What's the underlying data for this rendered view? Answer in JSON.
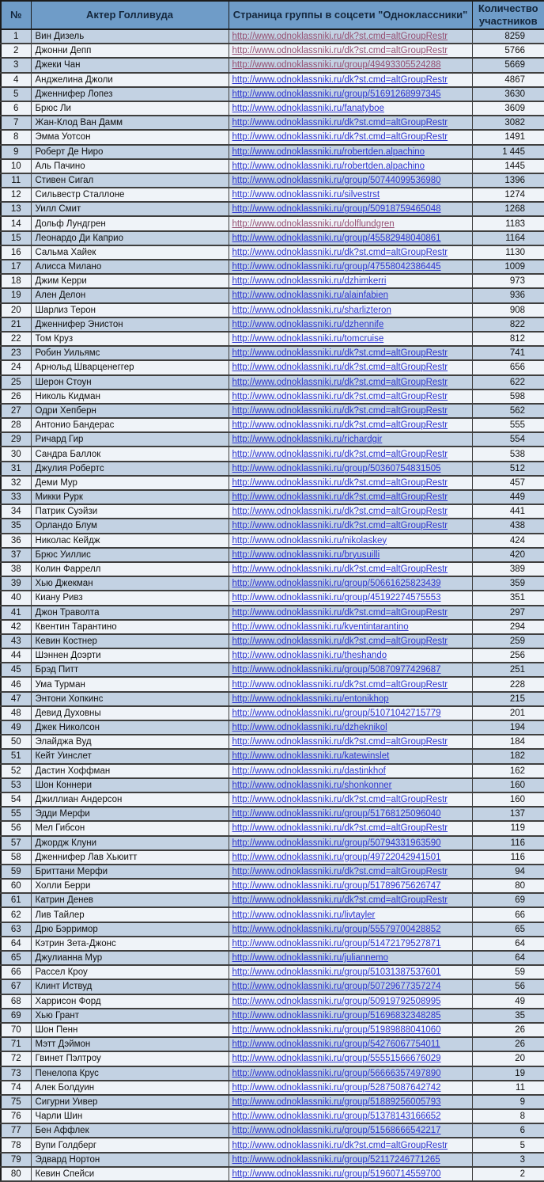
{
  "table": {
    "columns": [
      "№",
      "Актер Голливуда",
      "Страница группы в соцсети \"Одноклассники\"",
      "Количество участников"
    ],
    "colors": {
      "header_bg": "#6f9cc8",
      "header_text": "#14273d",
      "row_odd_bg": "#c3d2e3",
      "row_even_bg": "#eff3f8",
      "link_color": "#2d35cf",
      "visited_link_color": "#954f72",
      "grid_line": "#3f3f3f"
    },
    "rows": [
      {
        "n": 1,
        "actor": "Вин Дизель",
        "url": "http://www.odnoklassniki.ru/dk?st.cmd=altGroupRestr",
        "count": "8259",
        "visited": true
      },
      {
        "n": 2,
        "actor": "Джонни Депп",
        "url": "http://www.odnoklassniki.ru/dk?st.cmd=altGroupRestr",
        "count": "5766",
        "visited": true
      },
      {
        "n": 3,
        "actor": "Джеки Чан",
        "url": "http://www.odnoklassniki.ru/group/49493305524288",
        "count": "5669",
        "visited": true
      },
      {
        "n": 4,
        "actor": "Анджелина Джоли",
        "url": "http://www.odnoklassniki.ru/dk?st.cmd=altGroupRestr",
        "count": "4867",
        "visited": false
      },
      {
        "n": 5,
        "actor": "Дженнифер Лопез",
        "url": "http://www.odnoklassniki.ru/group/51691268997345",
        "count": "3630",
        "visited": false
      },
      {
        "n": 6,
        "actor": "Брюс Ли",
        "url": "http://www.odnoklassniki.ru/fanatyboe",
        "count": "3609",
        "visited": false
      },
      {
        "n": 7,
        "actor": "Жан-Клод Ван Дамм",
        "url": "http://www.odnoklassniki.ru/dk?st.cmd=altGroupRestr",
        "count": "3082",
        "visited": false
      },
      {
        "n": 8,
        "actor": "Эмма Уотсон",
        "url": "http://www.odnoklassniki.ru/dk?st.cmd=altGroupRestr",
        "count": "1491",
        "visited": false
      },
      {
        "n": 9,
        "actor": "Роберт Де Ниро",
        "url": "http://www.odnoklassniki.ru/robertden.alpachino",
        "count": "1 445",
        "visited": false
      },
      {
        "n": 10,
        "actor": "Аль Пачино",
        "url": "http://www.odnoklassniki.ru/robertden.alpachino",
        "count": "1445",
        "visited": false
      },
      {
        "n": 11,
        "actor": "Стивен Сигал",
        "url": "http://www.odnoklassniki.ru/group/50744099536980",
        "count": "1396",
        "visited": false
      },
      {
        "n": 12,
        "actor": "Сильвестр Сталлоне",
        "url": "http://www.odnoklassniki.ru/silvestrst",
        "count": "1274",
        "visited": false
      },
      {
        "n": 13,
        "actor": "Уилл Смит",
        "url": "http://www.odnoklassniki.ru/group/50918759465048",
        "count": "1268",
        "visited": false
      },
      {
        "n": 14,
        "actor": "Дольф Лундгрен",
        "url": "http://www.odnoklassniki.ru/dolflundgren",
        "count": "1183",
        "visited": true
      },
      {
        "n": 15,
        "actor": "Леонардо Ди Каприо",
        "url": "http://www.odnoklassniki.ru/group/45582948040861",
        "count": "1164",
        "visited": false
      },
      {
        "n": 16,
        "actor": "Сальма Хайек",
        "url": "http://www.odnoklassniki.ru/dk?st.cmd=altGroupRestr",
        "count": "1130",
        "visited": false
      },
      {
        "n": 17,
        "actor": "Алисса Милано",
        "url": "http://www.odnoklassniki.ru/group/47558042386445",
        "count": "1009",
        "visited": false
      },
      {
        "n": 18,
        "actor": "Джим Керри",
        "url": "http://www.odnoklassniki.ru/dzhimkerri",
        "count": "973",
        "visited": false
      },
      {
        "n": 19,
        "actor": "Ален Делон",
        "url": "http://www.odnoklassniki.ru/alainfabien",
        "count": "936",
        "visited": false
      },
      {
        "n": 20,
        "actor": "Шарлиз Терон",
        "url": "http://www.odnoklassniki.ru/sharlizteron",
        "count": "908",
        "visited": false
      },
      {
        "n": 21,
        "actor": "Дженнифер Энистон",
        "url": "http://www.odnoklassniki.ru/dzhennife",
        "count": "822",
        "visited": false
      },
      {
        "n": 22,
        "actor": "Том Круз",
        "url": "http://www.odnoklassniki.ru/tomcruise",
        "count": "812",
        "visited": false
      },
      {
        "n": 23,
        "actor": "Робин Уильямс",
        "url": "http://www.odnoklassniki.ru/dk?st.cmd=altGroupRestr",
        "count": "741",
        "visited": false
      },
      {
        "n": 24,
        "actor": "Арнольд Шварценеггер",
        "url": "http://www.odnoklassniki.ru/dk?st.cmd=altGroupRestr",
        "count": "656",
        "visited": false
      },
      {
        "n": 25,
        "actor": "Шерон Стоун",
        "url": "http://www.odnoklassniki.ru/dk?st.cmd=altGroupRestr",
        "count": "622",
        "visited": false
      },
      {
        "n": 26,
        "actor": "Николь Кидман",
        "url": "http://www.odnoklassniki.ru/dk?st.cmd=altGroupRestr",
        "count": "598",
        "visited": false
      },
      {
        "n": 27,
        "actor": "Одри Хепберн",
        "url": "http://www.odnoklassniki.ru/dk?st.cmd=altGroupRestr",
        "count": "562",
        "visited": false
      },
      {
        "n": 28,
        "actor": "Антонио Бандерас",
        "url": "http://www.odnoklassniki.ru/dk?st.cmd=altGroupRestr",
        "count": "555",
        "visited": false
      },
      {
        "n": 29,
        "actor": "Ричард Гир",
        "url": "http://www.odnoklassniki.ru/richardgir",
        "count": "554",
        "visited": false
      },
      {
        "n": 30,
        "actor": "Сандра Баллок",
        "url": "http://www.odnoklassniki.ru/dk?st.cmd=altGroupRestr",
        "count": "538",
        "visited": false
      },
      {
        "n": 31,
        "actor": "Джулия Робертс",
        "url": "http://www.odnoklassniki.ru/group/50360754831505",
        "count": "512",
        "visited": false
      },
      {
        "n": 32,
        "actor": "Деми Мур",
        "url": "http://www.odnoklassniki.ru/dk?st.cmd=altGroupRestr",
        "count": "457",
        "visited": false
      },
      {
        "n": 33,
        "actor": "Микки Рурк",
        "url": "http://www.odnoklassniki.ru/dk?st.cmd=altGroupRestr",
        "count": "449",
        "visited": false
      },
      {
        "n": 34,
        "actor": "Патрик Суэйзи",
        "url": "http://www.odnoklassniki.ru/dk?st.cmd=altGroupRestr",
        "count": "441",
        "visited": false
      },
      {
        "n": 35,
        "actor": "Орландо Блум",
        "url": "http://www.odnoklassniki.ru/dk?st.cmd=altGroupRestr",
        "count": "438",
        "visited": false
      },
      {
        "n": 36,
        "actor": "Николас Кейдж",
        "url": "http://www.odnoklassniki.ru/nikolaskey",
        "count": "424",
        "visited": false
      },
      {
        "n": 37,
        "actor": "Брюс Уиллис",
        "url": "http://www.odnoklassniki.ru/bryusuilli",
        "count": "420",
        "visited": false
      },
      {
        "n": 38,
        "actor": "Колин Фаррелл",
        "url": "http://www.odnoklassniki.ru/dk?st.cmd=altGroupRestr",
        "count": "389",
        "visited": false
      },
      {
        "n": 39,
        "actor": "Хью Джекман",
        "url": "http://www.odnoklassniki.ru/group/50661625823439",
        "count": "359",
        "visited": false
      },
      {
        "n": 40,
        "actor": "Киану Ривз",
        "url": "http://www.odnoklassniki.ru/group/45192274575553",
        "count": "351",
        "visited": false
      },
      {
        "n": 41,
        "actor": "Джон Траволта",
        "url": "http://www.odnoklassniki.ru/dk?st.cmd=altGroupRestr",
        "count": "297",
        "visited": false
      },
      {
        "n": 42,
        "actor": "Квентин Тарантино",
        "url": "http://www.odnoklassniki.ru/kventintarantino",
        "count": "294",
        "visited": false
      },
      {
        "n": 43,
        "actor": "Кевин Костнер",
        "url": "http://www.odnoklassniki.ru/dk?st.cmd=altGroupRestr",
        "count": "259",
        "visited": false
      },
      {
        "n": 44,
        "actor": "Шэннен Доэрти",
        "url": "http://www.odnoklassniki.ru/theshando",
        "count": "256",
        "visited": false
      },
      {
        "n": 45,
        "actor": "Брэд Питт",
        "url": "http://www.odnoklassniki.ru/group/50870977429687",
        "count": "251",
        "visited": false
      },
      {
        "n": 46,
        "actor": "Ума Турман",
        "url": "http://www.odnoklassniki.ru/dk?st.cmd=altGroupRestr",
        "count": "228",
        "visited": false
      },
      {
        "n": 47,
        "actor": "Энтони Хопкинс",
        "url": "http://www.odnoklassniki.ru/entonikhop",
        "count": "215",
        "visited": false
      },
      {
        "n": 48,
        "actor": "Девид Духовны",
        "url": "http://www.odnoklassniki.ru/group/51071042715779",
        "count": "201",
        "visited": false
      },
      {
        "n": 49,
        "actor": "Джек Николсон",
        "url": "http://www.odnoklassniki.ru/dzheknikol",
        "count": "194",
        "visited": false
      },
      {
        "n": 50,
        "actor": "Элайджа Вуд",
        "url": "http://www.odnoklassniki.ru/dk?st.cmd=altGroupRestr",
        "count": "184",
        "visited": false
      },
      {
        "n": 51,
        "actor": "Кейт Уинслет",
        "url": "http://www.odnoklassniki.ru/katewinslet",
        "count": "182",
        "visited": false
      },
      {
        "n": 52,
        "actor": "Дастин Хоффман",
        "url": "http://www.odnoklassniki.ru/dastinkhof",
        "count": "162",
        "visited": false
      },
      {
        "n": 53,
        "actor": "Шон Коннери",
        "url": "http://www.odnoklassniki.ru/shonkonner",
        "count": "160",
        "visited": false
      },
      {
        "n": 54,
        "actor": "Джиллиан Андерсон",
        "url": "http://www.odnoklassniki.ru/dk?st.cmd=altGroupRestr",
        "count": "160",
        "visited": false
      },
      {
        "n": 55,
        "actor": "Эдди Мерфи",
        "url": "http://www.odnoklassniki.ru/group/51768125096040",
        "count": "137",
        "visited": false
      },
      {
        "n": 56,
        "actor": "Мел Гибсон",
        "url": "http://www.odnoklassniki.ru/dk?st.cmd=altGroupRestr",
        "count": "119",
        "visited": false
      },
      {
        "n": 57,
        "actor": "Джордж Клуни",
        "url": "http://www.odnoklassniki.ru/group/50794331963590",
        "count": "116",
        "visited": false
      },
      {
        "n": 58,
        "actor": "Дженнифер Лав Хьюитт",
        "url": "http://www.odnoklassniki.ru/group/49722042941501",
        "count": "116",
        "visited": false
      },
      {
        "n": 59,
        "actor": "Бриттани Мерфи",
        "url": "http://www.odnoklassniki.ru/dk?st.cmd=altGroupRestr",
        "count": "94",
        "visited": false
      },
      {
        "n": 60,
        "actor": "Холли Берри",
        "url": "http://www.odnoklassniki.ru/group/51789675626747",
        "count": "80",
        "visited": false
      },
      {
        "n": 61,
        "actor": "Катрин Денев",
        "url": "http://www.odnoklassniki.ru/dk?st.cmd=altGroupRestr",
        "count": "69",
        "visited": false
      },
      {
        "n": 62,
        "actor": "Лив Тайлер",
        "url": "http://www.odnoklassniki.ru/livtayler",
        "count": "66",
        "visited": false
      },
      {
        "n": 63,
        "actor": "Дрю Бэрримор",
        "url": "http://www.odnoklassniki.ru/group/55579700428852",
        "count": "65",
        "visited": false
      },
      {
        "n": 64,
        "actor": "Кэтрин Зета-Джонс",
        "url": "http://www.odnoklassniki.ru/group/51472179527871",
        "count": "64",
        "visited": false
      },
      {
        "n": 65,
        "actor": "Джулианна Мур",
        "url": "http://www.odnoklassniki.ru/juliannemo",
        "count": "64",
        "visited": false
      },
      {
        "n": 66,
        "actor": "Рассел Кроу",
        "url": "http://www.odnoklassniki.ru/group/51031387537601",
        "count": "59",
        "visited": false
      },
      {
        "n": 67,
        "actor": "Клинт Иствуд",
        "url": "http://www.odnoklassniki.ru/group/50729677357274",
        "count": "56",
        "visited": false
      },
      {
        "n": 68,
        "actor": "Харрисон Форд",
        "url": "http://www.odnoklassniki.ru/group/50919792508995",
        "count": "49",
        "visited": false
      },
      {
        "n": 69,
        "actor": "Хью Грант",
        "url": "http://www.odnoklassniki.ru/group/51696832348285",
        "count": "35",
        "visited": false
      },
      {
        "n": 70,
        "actor": "Шон Пенн",
        "url": "http://www.odnoklassniki.ru/group/51989888041060",
        "count": "26",
        "visited": false
      },
      {
        "n": 71,
        "actor": "Мэтт Дэймон",
        "url": "http://www.odnoklassniki.ru/group/54276067754011",
        "count": "26",
        "visited": false
      },
      {
        "n": 72,
        "actor": "Гвинет Пэлтроу",
        "url": "http://www.odnoklassniki.ru/group/55551566676029",
        "count": "20",
        "visited": false
      },
      {
        "n": 73,
        "actor": "Пенелопа Крус",
        "url": "http://www.odnoklassniki.ru/group/56666357497890",
        "count": "19",
        "visited": false
      },
      {
        "n": 74,
        "actor": "Алек Болдуин",
        "url": "http://www.odnoklassniki.ru/group/52875087642742",
        "count": "11",
        "visited": false
      },
      {
        "n": 75,
        "actor": "Сигурни Уивер",
        "url": "http://www.odnoklassniki.ru/group/51889256005793",
        "count": "9",
        "visited": false
      },
      {
        "n": 76,
        "actor": "Чарли Шин",
        "url": "http://www.odnoklassniki.ru/group/51378143166652",
        "count": "8",
        "visited": false
      },
      {
        "n": 77,
        "actor": "Бен Аффлек",
        "url": "http://www.odnoklassniki.ru/group/51568666542217",
        "count": "6",
        "visited": false
      },
      {
        "n": 78,
        "actor": "Вупи Голдберг",
        "url": "http://www.odnoklassniki.ru/dk?st.cmd=altGroupRestr",
        "count": "5",
        "visited": false
      },
      {
        "n": 79,
        "actor": "Эдвард Нортон",
        "url": "http://www.odnoklassniki.ru/group/52117246771265",
        "count": "3",
        "visited": false
      },
      {
        "n": 80,
        "actor": "Кевин Спейси",
        "url": "http://www.odnoklassniki.ru/group/51960714559700",
        "count": "2",
        "visited": false
      }
    ]
  }
}
